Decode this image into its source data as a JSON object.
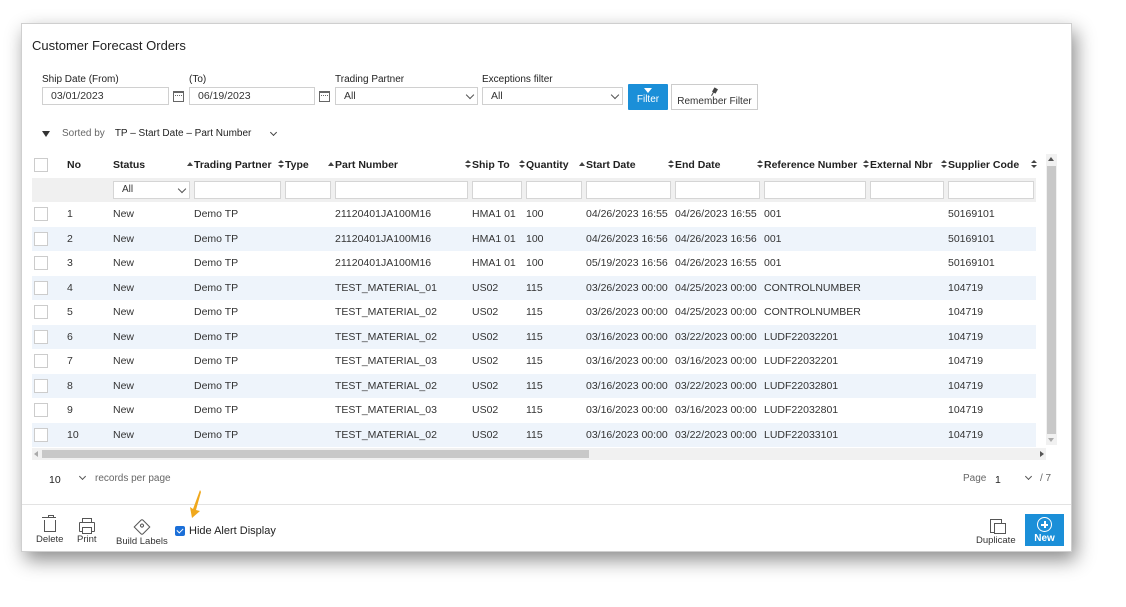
{
  "title": "Customer Forecast Orders",
  "filters": {
    "ship_from_label": "Ship Date (From)",
    "ship_from_value": "03/01/2023",
    "ship_to_label": "(To)",
    "ship_to_value": "06/19/2023",
    "partner_label": "Trading Partner",
    "partner_value": "All",
    "exceptions_label": "Exceptions filter",
    "exceptions_value": "All",
    "filter_button": "Filter",
    "remember_button": "Remember Filter"
  },
  "sort": {
    "label": "Sorted by",
    "value": "TP – Start Date – Part Number"
  },
  "columns": [
    "No",
    "Status",
    "Trading Partner",
    "Type",
    "Part Number",
    "Ship To",
    "Quantity",
    "Start Date",
    "End Date",
    "Reference Number",
    "External Nbr",
    "Supplier Code"
  ],
  "status_filter": "All",
  "rows": [
    {
      "no": "1",
      "status": "New",
      "partner": "Demo TP",
      "type": "",
      "part": "21120401JA100M16",
      "shipto": "HMA1 01",
      "qty": "100",
      "start": "04/26/2023 16:55",
      "end": "04/26/2023 16:55",
      "ref": "001",
      "ext": "",
      "supplier": "50169101"
    },
    {
      "no": "2",
      "status": "New",
      "partner": "Demo TP",
      "type": "",
      "part": "21120401JA100M16",
      "shipto": "HMA1 01",
      "qty": "100",
      "start": "04/26/2023 16:56",
      "end": "04/26/2023 16:56",
      "ref": "001",
      "ext": "",
      "supplier": "50169101"
    },
    {
      "no": "3",
      "status": "New",
      "partner": "Demo TP",
      "type": "",
      "part": "21120401JA100M16",
      "shipto": "HMA1 01",
      "qty": "100",
      "start": "05/19/2023 16:56",
      "end": "04/26/2023 16:55",
      "ref": "001",
      "ext": "",
      "supplier": "50169101"
    },
    {
      "no": "4",
      "status": "New",
      "partner": "Demo TP",
      "type": "",
      "part": "TEST_MATERIAL_01",
      "shipto": "US02",
      "qty": "115",
      "start": "03/26/2023 00:00",
      "end": "04/25/2023 00:00",
      "ref": "CONTROLNUMBER",
      "ext": "",
      "supplier": "104719"
    },
    {
      "no": "5",
      "status": "New",
      "partner": "Demo TP",
      "type": "",
      "part": "TEST_MATERIAL_02",
      "shipto": "US02",
      "qty": "115",
      "start": "03/26/2023 00:00",
      "end": "04/25/2023 00:00",
      "ref": "CONTROLNUMBER",
      "ext": "",
      "supplier": "104719"
    },
    {
      "no": "6",
      "status": "New",
      "partner": "Demo TP",
      "type": "",
      "part": "TEST_MATERIAL_02",
      "shipto": "US02",
      "qty": "115",
      "start": "03/16/2023 00:00",
      "end": "03/22/2023 00:00",
      "ref": "LUDF22032201",
      "ext": "",
      "supplier": "104719"
    },
    {
      "no": "7",
      "status": "New",
      "partner": "Demo TP",
      "type": "",
      "part": "TEST_MATERIAL_03",
      "shipto": "US02",
      "qty": "115",
      "start": "03/16/2023 00:00",
      "end": "03/16/2023 00:00",
      "ref": "LUDF22032201",
      "ext": "",
      "supplier": "104719"
    },
    {
      "no": "8",
      "status": "New",
      "partner": "Demo TP",
      "type": "",
      "part": "TEST_MATERIAL_02",
      "shipto": "US02",
      "qty": "115",
      "start": "03/16/2023 00:00",
      "end": "03/22/2023 00:00",
      "ref": "LUDF22032801",
      "ext": "",
      "supplier": "104719"
    },
    {
      "no": "9",
      "status": "New",
      "partner": "Demo TP",
      "type": "",
      "part": "TEST_MATERIAL_03",
      "shipto": "US02",
      "qty": "115",
      "start": "03/16/2023 00:00",
      "end": "03/16/2023 00:00",
      "ref": "LUDF22032801",
      "ext": "",
      "supplier": "104719"
    },
    {
      "no": "10",
      "status": "New",
      "partner": "Demo TP",
      "type": "",
      "part": "TEST_MATERIAL_02",
      "shipto": "US02",
      "qty": "115",
      "start": "03/16/2023 00:00",
      "end": "03/22/2023 00:00",
      "ref": "LUDF22033101",
      "ext": "",
      "supplier": "104719"
    }
  ],
  "pager": {
    "per_page": "10",
    "per_page_text": "records per page",
    "page_label": "Page",
    "page_value": "1",
    "total": "/ 7"
  },
  "footer": {
    "delete": "Delete",
    "print": "Print",
    "build_labels": "Build Labels",
    "hide_alert": "Hide Alert Display",
    "duplicate": "Duplicate",
    "new": "New"
  },
  "colors": {
    "accent": "#1b8fd8",
    "row_alt": "#eef4fb",
    "annotation_arrow": "#f0a81c"
  },
  "icons": [
    "calendar-icon",
    "funnel-icon",
    "pin-icon",
    "trash-icon",
    "printer-icon",
    "tag-icon",
    "duplicate-icon",
    "plus-circle-icon"
  ]
}
